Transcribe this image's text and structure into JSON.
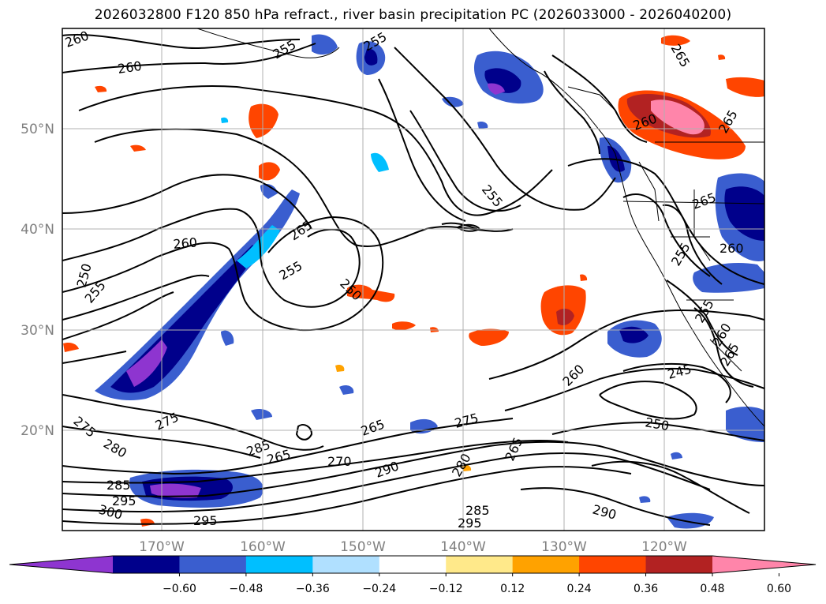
{
  "title": "2026032800 F120 850 hPa refract., river basin precipitation PC (2026033000 - 2026040200)",
  "map": {
    "lat_labels": [
      "50°N",
      "40°N",
      "30°N",
      "20°N"
    ],
    "lon_labels": [
      "170°W",
      "160°W",
      "150°W",
      "140°W",
      "130°W",
      "120°W"
    ],
    "contour_labels": [
      "260",
      "260",
      "255",
      "255",
      "265",
      "260",
      "255",
      "250",
      "255",
      "250",
      "265",
      "260",
      "255",
      "265",
      "260",
      "245",
      "250",
      "275",
      "275",
      "280",
      "285",
      "265",
      "270",
      "265",
      "275",
      "290",
      "280",
      "265",
      "285",
      "295",
      "300",
      "295",
      "290",
      "285",
      "295",
      "255",
      "260",
      "265",
      "260",
      "255",
      "265"
    ]
  },
  "colorbar": {
    "ticks": [
      "−0.60",
      "−0.48",
      "−0.36",
      "−0.24",
      "−0.12",
      "0.12",
      "0.24",
      "0.36",
      "0.48",
      "0.60"
    ],
    "colors": [
      "#8e35d0",
      "#00008b",
      "#3a5ecf",
      "#00bfff",
      "#b0e0ff",
      "#ffffff",
      "#ffe98a",
      "#ffa200",
      "#ff4500",
      "#b22222",
      "#ff85aa"
    ],
    "extend": "both"
  }
}
